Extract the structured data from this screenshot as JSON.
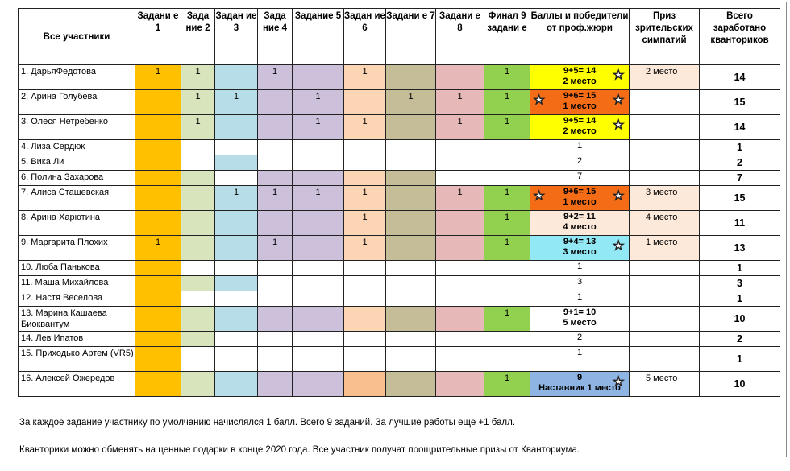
{
  "table": {
    "headers": [
      "Все участники",
      "Задани е 1",
      "Зада ние 2",
      "Задан ие 3",
      "Зада ние 4",
      "Задание 5",
      "Задан ие 6",
      "Задани е 7",
      "Задани е 8",
      "Финал 9 задани е",
      "Баллы и победители от проф.жюри",
      "Приз зрительских симпатий",
      "Всего заработано кванториков"
    ],
    "column_colors": {
      "task1": "#FFC000",
      "task2": "#D7E4BC",
      "task3": "#B7DEE8",
      "task4": "#CCC0DA",
      "task5": "#CCC0DA",
      "task6": "#FCD5B4",
      "task7": "#C4BD97",
      "task8": "#E6B8B7",
      "final": "#92D050"
    },
    "score_colors": {
      "yellow": "#FFFF00",
      "orange": "#F46D16",
      "peach": "#FDE9D9",
      "cyan": "#92E8F5",
      "blue": "#8DB4E2"
    },
    "rows": [
      {
        "name": "1. ДарьяФедотова",
        "t": [
          "1",
          "1",
          "",
          "1",
          "",
          "1",
          "",
          "",
          ""
        ],
        "f": "1",
        "score": "9+5= 14",
        "place": "2 место",
        "sc": "yellow",
        "stars": "r",
        "prize": "2 место",
        "pc": "peach",
        "total": "14"
      },
      {
        "name": "2. Арина Голубева",
        "t": [
          "",
          "1",
          "1",
          "",
          "1",
          "",
          "1",
          "1",
          ""
        ],
        "f": "1",
        "score": "9+6= 15",
        "place": "1 место",
        "sc": "orange",
        "stars": "lr",
        "prize": "",
        "pc": "",
        "total": "15"
      },
      {
        "name": "3. Олеся Нетребенко",
        "t": [
          "",
          "1",
          "",
          "",
          "1",
          "1",
          "",
          "1",
          ""
        ],
        "f": "1",
        "score": "9+5= 14",
        "place": "2 место",
        "sc": "yellow",
        "stars": "r",
        "prize": "",
        "pc": "",
        "total": "14"
      },
      {
        "name": "4. Лиза Сердюк",
        "t": [
          "",
          "",
          "",
          "",
          "",
          "",
          "",
          "",
          ""
        ],
        "f": "",
        "score": "1",
        "place": "",
        "sc": "",
        "stars": "",
        "prize": "",
        "pc": "",
        "total": "1"
      },
      {
        "name": "5. Вика Ли",
        "t": [
          "",
          "",
          "",
          "",
          "",
          "",
          "",
          "",
          ""
        ],
        "f": "",
        "score": "2",
        "place": "",
        "sc": "",
        "stars": "",
        "prize": "",
        "pc": "",
        "total": "2"
      },
      {
        "name": "6. Полина Захарова",
        "t": [
          "",
          "",
          "",
          "",
          "",
          "",
          "",
          "",
          ""
        ],
        "f": "",
        "score": "7",
        "place": "",
        "sc": "",
        "stars": "",
        "prize": "",
        "pc": "",
        "total": "7"
      },
      {
        "name": "7. Алиса Сташевская",
        "t": [
          "",
          "",
          "1",
          "1",
          "1",
          "1",
          "",
          "1",
          ""
        ],
        "f": "1",
        "score": "9+6= 15",
        "place": "1 место",
        "sc": "orange",
        "stars": "lr",
        "prize": "3 место",
        "pc": "peach",
        "total": "15"
      },
      {
        "name": "8. Арина Харютина",
        "t": [
          "",
          "",
          "",
          "",
          "",
          "1",
          "",
          "",
          ""
        ],
        "f": "1",
        "score": "9+2= 11",
        "place": "4 место",
        "sc": "peach",
        "stars": "",
        "prize": "4 место",
        "pc": "peach",
        "total": "11"
      },
      {
        "name": "9. Маргарита Плохих",
        "t": [
          "1",
          "",
          "",
          "1",
          "",
          "1",
          "",
          "",
          ""
        ],
        "f": "1",
        "score": "9+4= 13",
        "place": "3 место",
        "sc": "cyan",
        "stars": "r",
        "prize": "1 место",
        "pc": "peach",
        "total": "13"
      },
      {
        "name": "10. Люба Панькова",
        "t": [
          "",
          "",
          "",
          "",
          "",
          "",
          "",
          "",
          ""
        ],
        "f": "",
        "score": "1",
        "place": "",
        "sc": "",
        "stars": "",
        "prize": "",
        "pc": "",
        "total": "1"
      },
      {
        "name": "11. Маша Михайлова",
        "t": [
          "",
          "",
          "",
          "",
          "",
          "",
          "",
          "",
          ""
        ],
        "f": "",
        "score": "3",
        "place": "",
        "sc": "",
        "stars": "",
        "prize": "",
        "pc": "",
        "total": "3"
      },
      {
        "name": "12. Настя Веселова",
        "t": [
          "",
          "",
          "",
          "",
          "",
          "",
          "",
          "",
          ""
        ],
        "f": "",
        "score": "1",
        "place": "",
        "sc": "",
        "stars": "",
        "prize": "",
        "pc": "",
        "total": "1"
      },
      {
        "name": "13. Марина Кашаева Биоквантум",
        "t": [
          "",
          "",
          "",
          "",
          "",
          "",
          "",
          "",
          ""
        ],
        "f": "1",
        "score": "9+1= 10",
        "place": "5 место",
        "sc": "",
        "stars": "",
        "prize": "",
        "pc": "",
        "total": "10"
      },
      {
        "name": "14. Лев Ипатов",
        "t": [
          "",
          "",
          "",
          "",
          "",
          "",
          "",
          "",
          ""
        ],
        "f": "",
        "score": "2",
        "place": "",
        "sc": "",
        "stars": "",
        "prize": "",
        "pc": "",
        "total": "2"
      },
      {
        "name": "15. Приходько Артем (VR5)",
        "t": [
          "",
          "",
          "",
          "",
          "",
          "",
          "",
          "",
          ""
        ],
        "f": "",
        "score": "1",
        "place": "",
        "sc": "",
        "stars": "",
        "prize": "",
        "pc": "",
        "total": "1"
      },
      {
        "name": "16. Алексей Ожередов",
        "t": [
          "",
          "",
          "",
          "",
          "",
          "",
          "",
          "",
          ""
        ],
        "f": "1",
        "score": "9",
        "place": "Наставник 1 место",
        "sc": "blue",
        "stars": "r",
        "prize": "5 место",
        "pc": "",
        "total": "10"
      }
    ]
  },
  "notes": [
    "За каждое задание участнику по умолчанию начислялся 1 балл. Всего 9 заданий. За лучшие работы еще +1 балл.",
    "Кванторики можно обменять на ценные подарки в конце 2020 года. Все участник получат поощрительные призы от Кванториума."
  ]
}
